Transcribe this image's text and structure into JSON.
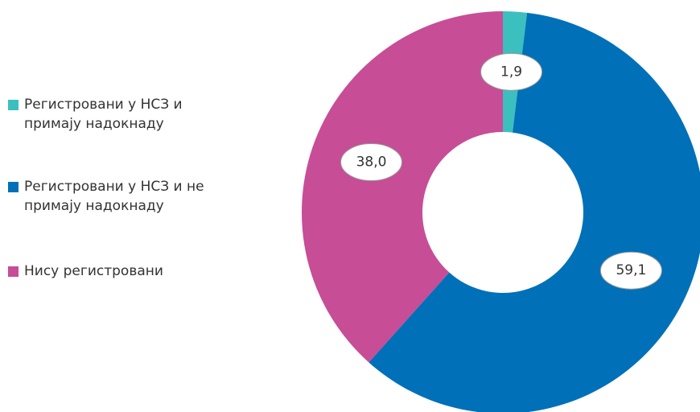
{
  "chart_data": {
    "type": "donut",
    "categories": [
      "Регистровани у НСЗ и примају надокнаду",
      "Регистровани у НСЗ и не примају надокнаду",
      "Нису регистровани"
    ],
    "values": [
      1.9,
      59.1,
      38.0
    ],
    "value_labels": [
      "1,9",
      "59,1",
      "38,0"
    ],
    "colors": [
      "#3cbfbf",
      "#0070b8",
      "#c74d97"
    ],
    "legend": "left"
  }
}
